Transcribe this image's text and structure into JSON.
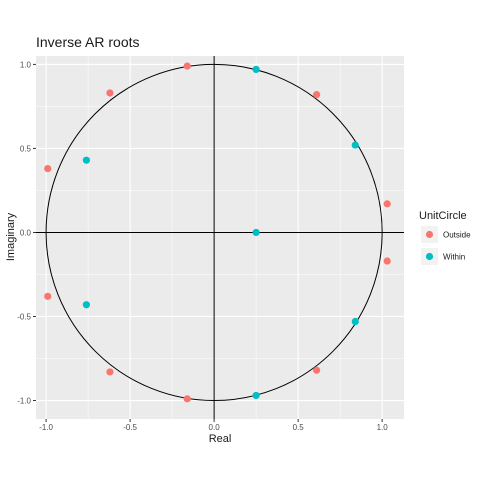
{
  "chart_data": {
    "type": "scatter",
    "title": "Inverse AR roots",
    "xlabel": "Real",
    "ylabel": "Imaginary",
    "xlim": [
      -1.06,
      1.13
    ],
    "ylim": [
      -1.11,
      1.05
    ],
    "x_ticks": [
      -1.0,
      -0.5,
      0.0,
      0.5,
      1.0
    ],
    "x_tick_labels": [
      "-1.0",
      "-0.5",
      "0.0",
      "0.5",
      "1.0"
    ],
    "y_ticks": [
      -1.0,
      -0.5,
      0.0,
      0.5,
      1.0
    ],
    "y_tick_labels": [
      "-1.0",
      "-0.5",
      "0.0",
      "0.5",
      "1.0"
    ],
    "grid": true,
    "background": "#ebebeb",
    "unit_circle": true,
    "legend": {
      "title": "UnitCircle",
      "position": "right"
    },
    "series": [
      {
        "name": "Outside",
        "color": "#f8766d",
        "points": [
          {
            "x": -0.16,
            "y": 0.99
          },
          {
            "x": -0.62,
            "y": 0.83
          },
          {
            "x": -0.99,
            "y": 0.38
          },
          {
            "x": -0.99,
            "y": -0.38
          },
          {
            "x": -0.62,
            "y": -0.83
          },
          {
            "x": -0.16,
            "y": -0.99
          },
          {
            "x": 0.61,
            "y": 0.82
          },
          {
            "x": 1.03,
            "y": 0.17
          },
          {
            "x": 1.03,
            "y": -0.17
          },
          {
            "x": 0.61,
            "y": -0.82
          }
        ]
      },
      {
        "name": "Within",
        "color": "#00bfc4",
        "points": [
          {
            "x": 0.25,
            "y": 0.97
          },
          {
            "x": 0.84,
            "y": 0.52
          },
          {
            "x": 0.25,
            "y": 0.0
          },
          {
            "x": 0.84,
            "y": -0.53
          },
          {
            "x": 0.25,
            "y": -0.97
          },
          {
            "x": -0.76,
            "y": 0.43
          },
          {
            "x": -0.76,
            "y": -0.43
          }
        ]
      }
    ]
  }
}
